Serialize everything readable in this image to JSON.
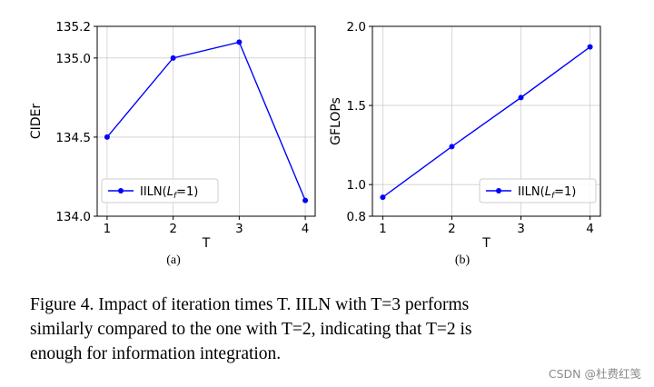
{
  "chart_data": [
    {
      "type": "line",
      "x": [
        1,
        2,
        3,
        4
      ],
      "series": [
        {
          "name": "IILN(L_f=1)",
          "legend_label": "IILN(",
          "legend_var": "L",
          "legend_sub": "f",
          "legend_tail": "=1)",
          "values": [
            134.5,
            135.0,
            135.1,
            134.1
          ],
          "color": "#0000ff"
        }
      ],
      "xlabel": "T",
      "ylabel": "CIDEr",
      "xlim": [
        0.85,
        4.15
      ],
      "ylim": [
        134.0,
        135.2
      ],
      "xticks": [
        "1",
        "2",
        "3",
        "4"
      ],
      "yticks": [
        134.0,
        134.5,
        135.0,
        135.2
      ],
      "ytick_labels": [
        "134.0",
        "134.5",
        "135.0",
        "135.2"
      ],
      "grid": true,
      "legend_position": "lower-left",
      "subcaption": "(a)"
    },
    {
      "type": "line",
      "x": [
        1,
        2,
        3,
        4
      ],
      "series": [
        {
          "name": "IILN(L_f=1)",
          "legend_label": "IILN(",
          "legend_var": "L",
          "legend_sub": "f",
          "legend_tail": "=1)",
          "values": [
            0.92,
            1.24,
            1.55,
            1.87
          ],
          "color": "#0000ff"
        }
      ],
      "xlabel": "T",
      "ylabel": "GFLOPs",
      "xlim": [
        0.85,
        4.15
      ],
      "ylim": [
        0.8,
        2.0
      ],
      "xticks": [
        "1",
        "2",
        "3",
        "4"
      ],
      "yticks": [
        0.8,
        1.0,
        1.5,
        2.0
      ],
      "ytick_labels": [
        "0.8",
        "1.0",
        "1.5",
        "2.0"
      ],
      "grid": true,
      "legend_position": "lower-right",
      "subcaption": "(b)"
    }
  ],
  "caption": {
    "line1": "Figure 4.  Impact of iteration times T. IILN with T=3 performs",
    "line2": "similarly compared to the one with T=2, indicating that T=2 is",
    "line3": "enough for information integration."
  },
  "watermark": "CSDN @杜费红笺"
}
